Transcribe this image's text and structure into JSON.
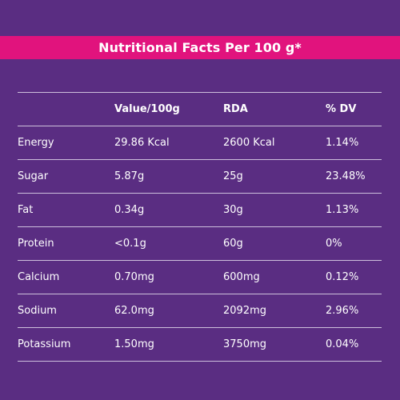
{
  "title": "Nutritional Facts Per 100 g*",
  "columns": [
    "",
    "Value/100g",
    "RDA",
    "% DV"
  ],
  "rows": [
    {
      "nutrient": "Energy",
      "value": "29.86 Kcal",
      "rda": "2600 Kcal",
      "dv": "1.14%"
    },
    {
      "nutrient": "Sugar",
      "value": "5.87g",
      "rda": "25g",
      "dv": "23.48%"
    },
    {
      "nutrient": "Fat",
      "value": "0.34g",
      "rda": "30g",
      "dv": "1.13%"
    },
    {
      "nutrient": "Protein",
      "value": "<0.1g",
      "rda": "60g",
      "dv": "0%"
    },
    {
      "nutrient": "Calcium",
      "value": "0.70mg",
      "rda": "600mg",
      "dv": "0.12%"
    },
    {
      "nutrient": "Sodium",
      "value": "62.0mg",
      "rda": "2092mg",
      "dv": "2.96%"
    },
    {
      "nutrient": "Potassium",
      "value": "1.50mg",
      "rda": "3750mg",
      "dv": "0.04%"
    }
  ],
  "colors": {
    "background": "#5a2d82",
    "title_bar": "#e1137d",
    "text": "#ffffff",
    "rule": "#cdbfdc"
  }
}
